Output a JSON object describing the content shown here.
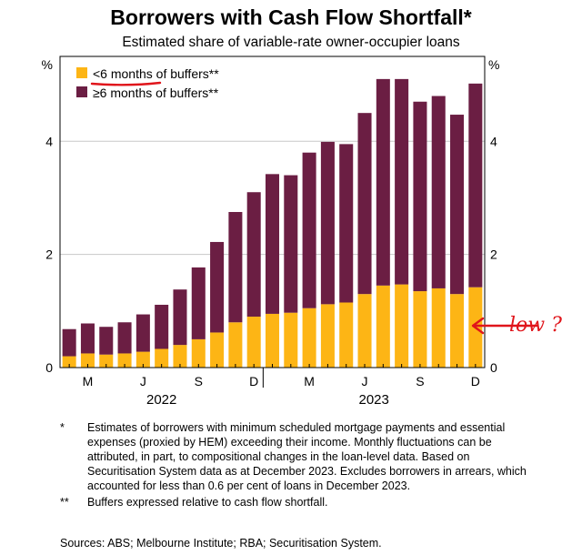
{
  "header": {
    "title": "Borrowers with Cash Flow Shortfall*",
    "subtitle": "Estimated share of variable-rate owner-occupier loans"
  },
  "colors": {
    "under6": "#FDB515",
    "over6": "#6B1E43",
    "annotation": "#E0151B"
  },
  "annotation": {
    "text": "low ?"
  },
  "chart_data": {
    "type": "bar",
    "stacked": true,
    "unit_left": "%",
    "unit_right": "%",
    "ylim": [
      0,
      5.5
    ],
    "yticks": [
      "0",
      "2",
      "4"
    ],
    "ytick_values": [
      0,
      2,
      4
    ],
    "xtick_labels": [
      "M",
      "J",
      "S",
      "D",
      "M",
      "J",
      "S",
      "D"
    ],
    "xtick_months": [
      "2022-03",
      "2022-06",
      "2022-09",
      "2022-12",
      "2023-03",
      "2023-06",
      "2023-09",
      "2023-12"
    ],
    "year_labels": [
      "2022",
      "2023"
    ],
    "categories": [
      "2022-02",
      "2022-03",
      "2022-04",
      "2022-05",
      "2022-06",
      "2022-07",
      "2022-08",
      "2022-09",
      "2022-10",
      "2022-11",
      "2022-12",
      "2023-01",
      "2023-02",
      "2023-03",
      "2023-04",
      "2023-05",
      "2023-06",
      "2023-07",
      "2023-08",
      "2023-09",
      "2023-10",
      "2023-11",
      "2023-12"
    ],
    "series": [
      {
        "name": "<6 months of buffers**",
        "values": [
          0.2,
          0.25,
          0.23,
          0.25,
          0.28,
          0.33,
          0.4,
          0.5,
          0.62,
          0.8,
          0.9,
          0.95,
          0.97,
          1.05,
          1.12,
          1.15,
          1.3,
          1.45,
          1.47,
          1.35,
          1.4,
          1.3,
          1.42
        ]
      },
      {
        "name": "≥6 months of buffers**",
        "values": [
          0.48,
          0.53,
          0.49,
          0.55,
          0.66,
          0.78,
          0.98,
          1.27,
          1.6,
          1.95,
          2.2,
          2.47,
          2.43,
          2.75,
          2.87,
          2.8,
          3.2,
          3.65,
          3.63,
          3.35,
          3.4,
          3.17,
          3.6
        ]
      }
    ],
    "legend_position": "top-left",
    "grid": "horizontal"
  },
  "notes": [
    {
      "mark": "*",
      "text": "Estimates of borrowers with minimum scheduled mortgage payments and essential expenses (proxied by HEM) exceeding their income. Monthly fluctuations can be attributed, in part, to compositional changes in the loan-level data. Based on Securitisation System data as at December 2023. Excludes borrowers in arrears, which accounted for less than 0.6 per cent of loans in December 2023."
    },
    {
      "mark": "**",
      "text": "Buffers expressed relative to cash flow shortfall."
    }
  ],
  "sources": "Sources: ABS; Melbourne Institute; RBA; Securitisation System."
}
